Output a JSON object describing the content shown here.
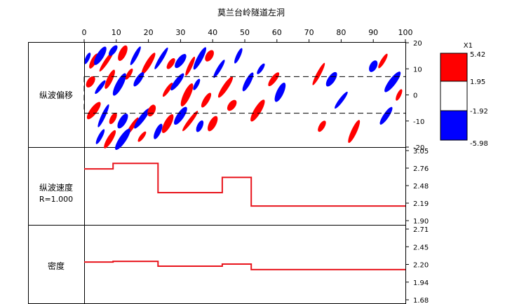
{
  "title": "莫兰台岭隧道左洞",
  "x_axis": {
    "ticks": [
      "0",
      "10",
      "20",
      "30",
      "40",
      "50",
      "60",
      "70",
      "80",
      "90",
      "100"
    ],
    "range": [
      0,
      100
    ]
  },
  "panels": {
    "migration": {
      "label": "纵波偏移",
      "y_ticks": [
        "20",
        "10",
        "0",
        "-10",
        "-20"
      ],
      "y_range": [
        -20,
        20
      ],
      "dashed_lines": [
        7,
        -7
      ]
    },
    "velocity": {
      "label": "纵波速度",
      "sublabel": "R=1.000",
      "y_ticks": [
        "3.05",
        "2.76",
        "2.48",
        "2.19",
        "1.90"
      ],
      "y_range": [
        1.9,
        3.05
      ]
    },
    "density": {
      "label": "密度",
      "y_ticks": [
        "2.71",
        "2.45",
        "2.20",
        "1.94",
        "1.68"
      ],
      "y_range": [
        1.68,
        2.71
      ]
    }
  },
  "legend": {
    "multiplier": "X1",
    "values": [
      "5.42",
      "1.95",
      "-1.92",
      "-5.98"
    ],
    "colors": [
      "#ff0000",
      "#ffffff",
      "#0000ff"
    ]
  },
  "chart_data": [
    {
      "type": "heatmap",
      "title": "莫兰台岭隧道左洞",
      "ylabel": "纵波偏移",
      "xlim": [
        0,
        100
      ],
      "ylim": [
        -20,
        20
      ],
      "color_scale": {
        "min": -5.98,
        "max": 5.42,
        "breaks": [
          5.42,
          1.95,
          -1.92,
          -5.98
        ]
      },
      "reflectors": [
        {
          "x": 1,
          "y": 14,
          "polarity": "neg"
        },
        {
          "x": 3,
          "y": 13,
          "polarity": "pos"
        },
        {
          "x": 5,
          "y": 15,
          "polarity": "neg"
        },
        {
          "x": 7,
          "y": 13,
          "polarity": "pos"
        },
        {
          "x": 9,
          "y": 17,
          "polarity": "neg"
        },
        {
          "x": 12,
          "y": 16,
          "polarity": "pos"
        },
        {
          "x": 16,
          "y": 15,
          "polarity": "neg"
        },
        {
          "x": 20,
          "y": 12,
          "polarity": "pos"
        },
        {
          "x": 2,
          "y": 5,
          "polarity": "pos"
        },
        {
          "x": 5,
          "y": 3,
          "polarity": "neg"
        },
        {
          "x": 8,
          "y": 6,
          "polarity": "pos"
        },
        {
          "x": 11,
          "y": 4,
          "polarity": "neg"
        },
        {
          "x": 14,
          "y": 8,
          "polarity": "pos"
        },
        {
          "x": 17,
          "y": 6,
          "polarity": "neg"
        },
        {
          "x": 3,
          "y": -6,
          "polarity": "pos"
        },
        {
          "x": 6,
          "y": -8,
          "polarity": "neg"
        },
        {
          "x": 9,
          "y": -9,
          "polarity": "pos"
        },
        {
          "x": 12,
          "y": -10,
          "polarity": "neg"
        },
        {
          "x": 15,
          "y": -12,
          "polarity": "pos"
        },
        {
          "x": 18,
          "y": -9,
          "polarity": "neg"
        },
        {
          "x": 21,
          "y": -6,
          "polarity": "pos"
        },
        {
          "x": 5,
          "y": -16,
          "polarity": "neg"
        },
        {
          "x": 8,
          "y": -17,
          "polarity": "pos"
        },
        {
          "x": 12,
          "y": -17,
          "polarity": "neg"
        },
        {
          "x": 18,
          "y": -16,
          "polarity": "pos"
        },
        {
          "x": 23,
          "y": -14,
          "polarity": "neg"
        },
        {
          "x": 26,
          "y": -11,
          "polarity": "pos"
        },
        {
          "x": 24,
          "y": 14,
          "polarity": "neg"
        },
        {
          "x": 27,
          "y": 12,
          "polarity": "pos"
        },
        {
          "x": 30,
          "y": 13,
          "polarity": "neg"
        },
        {
          "x": 33,
          "y": 11,
          "polarity": "pos"
        },
        {
          "x": 36,
          "y": 14,
          "polarity": "neg"
        },
        {
          "x": 39,
          "y": 15,
          "polarity": "pos"
        },
        {
          "x": 26,
          "y": 2,
          "polarity": "pos"
        },
        {
          "x": 29,
          "y": 5,
          "polarity": "neg"
        },
        {
          "x": 32,
          "y": 0,
          "polarity": "pos"
        },
        {
          "x": 35,
          "y": 4,
          "polarity": "neg"
        },
        {
          "x": 38,
          "y": -2,
          "polarity": "pos"
        },
        {
          "x": 30,
          "y": -8,
          "polarity": "neg"
        },
        {
          "x": 33,
          "y": -10,
          "polarity": "pos"
        },
        {
          "x": 36,
          "y": -12,
          "polarity": "neg"
        },
        {
          "x": 40,
          "y": -11,
          "polarity": "pos"
        },
        {
          "x": 42,
          "y": 10,
          "polarity": "neg"
        },
        {
          "x": 44,
          "y": 3,
          "polarity": "pos"
        },
        {
          "x": 46,
          "y": -4,
          "polarity": "pos"
        },
        {
          "x": 48,
          "y": 15,
          "polarity": "neg"
        },
        {
          "x": 51,
          "y": 5,
          "polarity": "neg"
        },
        {
          "x": 54,
          "y": -6,
          "polarity": "pos"
        },
        {
          "x": 55,
          "y": 10,
          "polarity": "neg"
        },
        {
          "x": 59,
          "y": 6,
          "polarity": "pos"
        },
        {
          "x": 61,
          "y": 1,
          "polarity": "neg"
        },
        {
          "x": 73,
          "y": 8,
          "polarity": "pos"
        },
        {
          "x": 74,
          "y": -12,
          "polarity": "pos"
        },
        {
          "x": 77,
          "y": 6,
          "polarity": "neg"
        },
        {
          "x": 80,
          "y": -2,
          "polarity": "neg"
        },
        {
          "x": 84,
          "y": -14,
          "polarity": "pos"
        },
        {
          "x": 90,
          "y": 11,
          "polarity": "neg"
        },
        {
          "x": 93,
          "y": 13,
          "polarity": "pos"
        },
        {
          "x": 94,
          "y": -8,
          "polarity": "neg"
        },
        {
          "x": 96,
          "y": 5,
          "polarity": "neg"
        },
        {
          "x": 98,
          "y": 0,
          "polarity": "pos"
        }
      ]
    },
    {
      "type": "line",
      "ylabel": "纵波速度",
      "annotation": "R=1.000",
      "xlim": [
        0,
        100
      ],
      "ylim": [
        1.9,
        3.05
      ],
      "series": [
        {
          "x": [
            0,
            9,
            9,
            23,
            23,
            43,
            43,
            52,
            52,
            100
          ],
          "y": [
            2.75,
            2.75,
            2.84,
            2.84,
            2.36,
            2.36,
            2.61,
            2.61,
            2.14,
            2.14
          ]
        }
      ]
    },
    {
      "type": "line",
      "ylabel": "密度",
      "xlim": [
        0,
        100
      ],
      "ylim": [
        1.68,
        2.71
      ],
      "series": [
        {
          "x": [
            0,
            9,
            9,
            23,
            23,
            43,
            43,
            52,
            52,
            100
          ],
          "y": [
            2.23,
            2.23,
            2.24,
            2.24,
            2.17,
            2.17,
            2.2,
            2.2,
            2.12,
            2.12
          ]
        }
      ]
    }
  ]
}
